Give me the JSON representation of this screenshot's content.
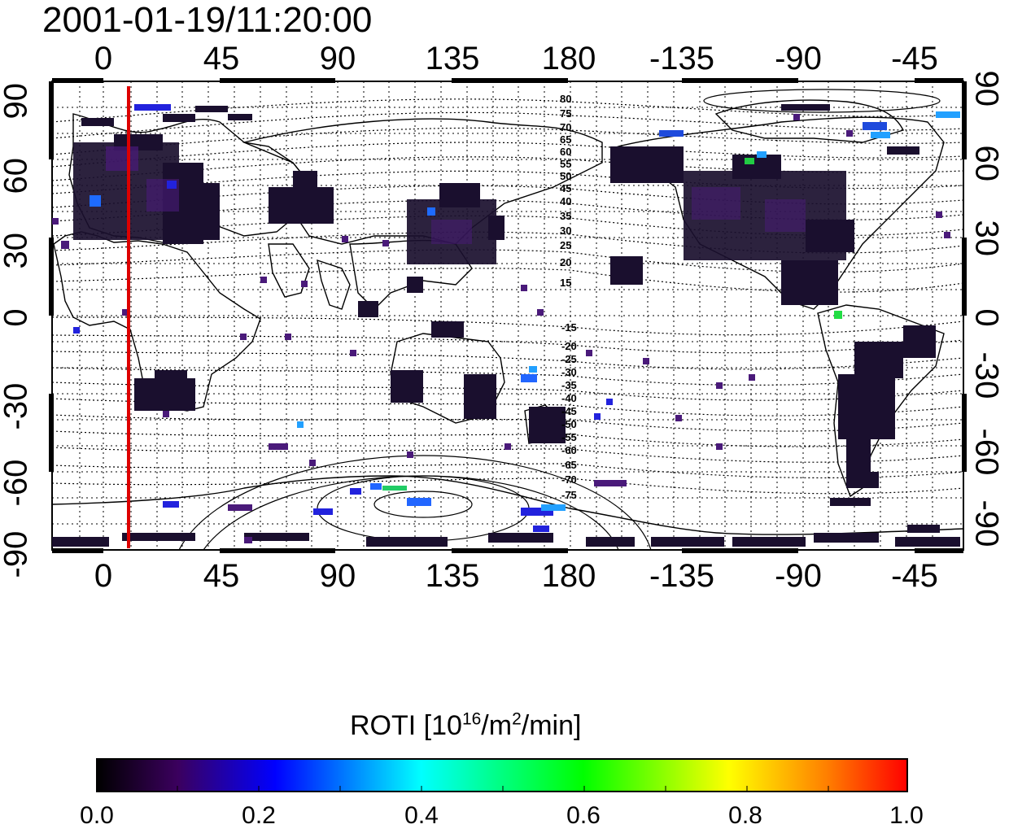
{
  "timestamp": "2001-01-19/11:20:00",
  "map": {
    "lon_ticks_top": [
      "0",
      "45",
      "90",
      "135",
      "180",
      "-135",
      "-90",
      "-45"
    ],
    "lon_ticks_bottom": [
      "0",
      "45",
      "90",
      "135",
      "180",
      "-135",
      "-90",
      "-45"
    ],
    "lat_ticks_left": [
      "90",
      "60",
      "30",
      "0",
      "-30",
      "-60",
      "-90"
    ],
    "lat_ticks_right": [
      "90",
      "60",
      "30",
      "0",
      "-30",
      "-60",
      "-90"
    ],
    "magnetic_lat_labels_north": [
      "80",
      "75",
      "70",
      "65",
      "60",
      "55",
      "50",
      "45",
      "40",
      "35",
      "30",
      "25",
      "20",
      "15"
    ],
    "magnetic_lat_labels_south": [
      "-15",
      "-20",
      "-25",
      "-30",
      "-35",
      "-40",
      "-45",
      "-50",
      "-55",
      "-60",
      "-65",
      "-70",
      "-75"
    ],
    "terminator_longitude": 10,
    "terminator_color": "#dd0000"
  },
  "colorbar": {
    "title_prefix": "ROTI  [10",
    "title_sup1": "16",
    "title_mid": "/m",
    "title_sup2": "2",
    "title_suffix": "/min]",
    "ticks": [
      "0.0",
      "0.2",
      "0.4",
      "0.6",
      "0.8",
      "1.0"
    ],
    "min": 0.0,
    "max": 1.0,
    "colors": [
      "#000000",
      "#3b005e",
      "#0000ff",
      "#00ffff",
      "#00ff00",
      "#ffff00",
      "#ff0000"
    ]
  }
}
